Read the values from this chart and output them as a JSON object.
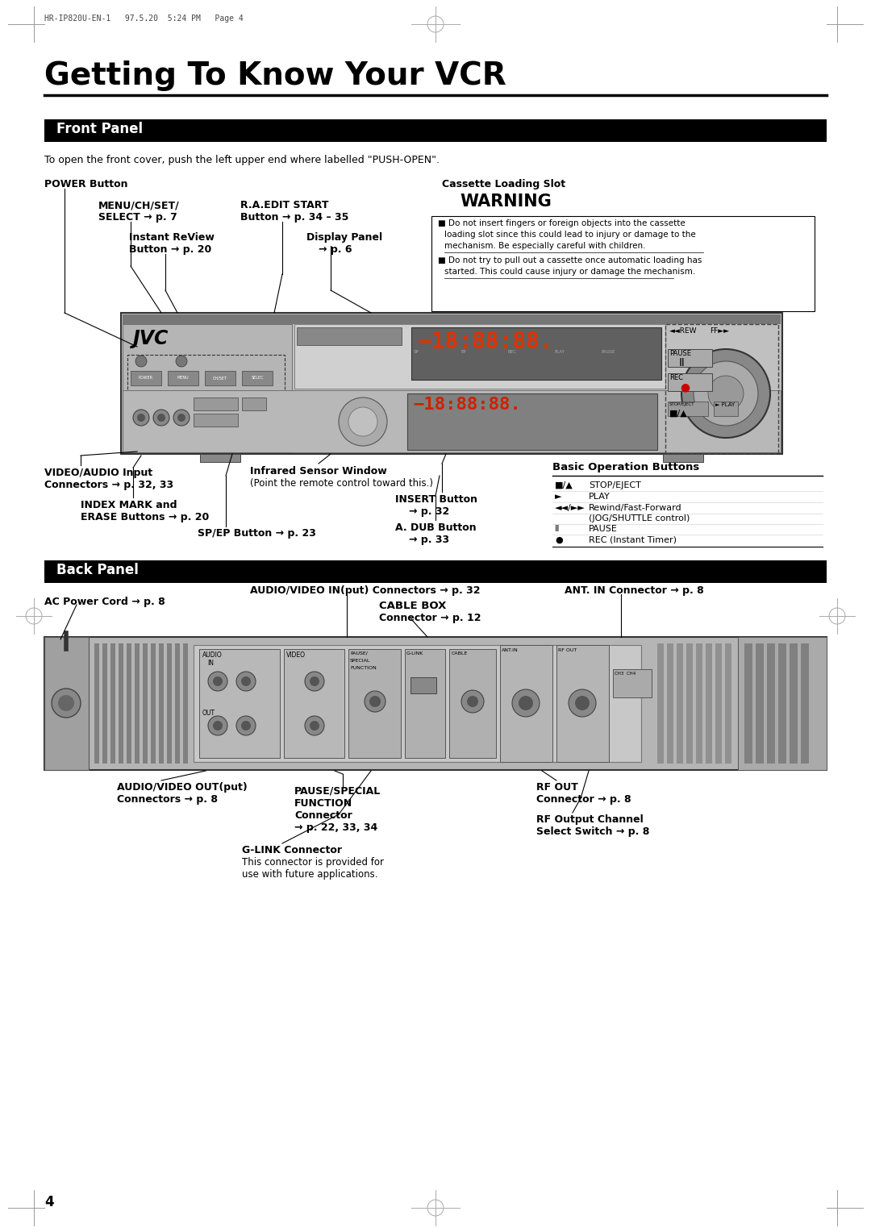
{
  "bg_color": "#ffffff",
  "page_header": "HR-IP820U-EN-1   97.5.20  5:24 PM   Page 4",
  "title": "Getting To Know Your VCR",
  "section1_label": "Front Panel",
  "section2_label": "Back Panel",
  "front_panel_note": "To open the front cover, push the left upper end where labelled \"PUSH-OPEN\".",
  "page_number": "4",
  "warn_line1": "■ Do not insert fingers or foreign objects into the cassette",
  "warn_line2": "loading slot since this could lead to injury or damage to the",
  "warn_line3": "mechanism. Be especially careful with children.",
  "warn_line4": "■ Do not try to pull out a cassette once automatic loading has",
  "warn_line5": "started. This could cause injury or damage the mechanism.",
  "ops": [
    [
      "■/▲",
      "STOP/EJECT"
    ],
    [
      "►",
      "PLAY"
    ],
    [
      "◄◄/►►",
      "Rewind/Fast-Forward"
    ],
    [
      "",
      "(JOG/SHUTTLE control)"
    ],
    [
      "Ⅱ",
      "PAUSE"
    ],
    [
      "●",
      "REC (Instant Timer)"
    ]
  ]
}
